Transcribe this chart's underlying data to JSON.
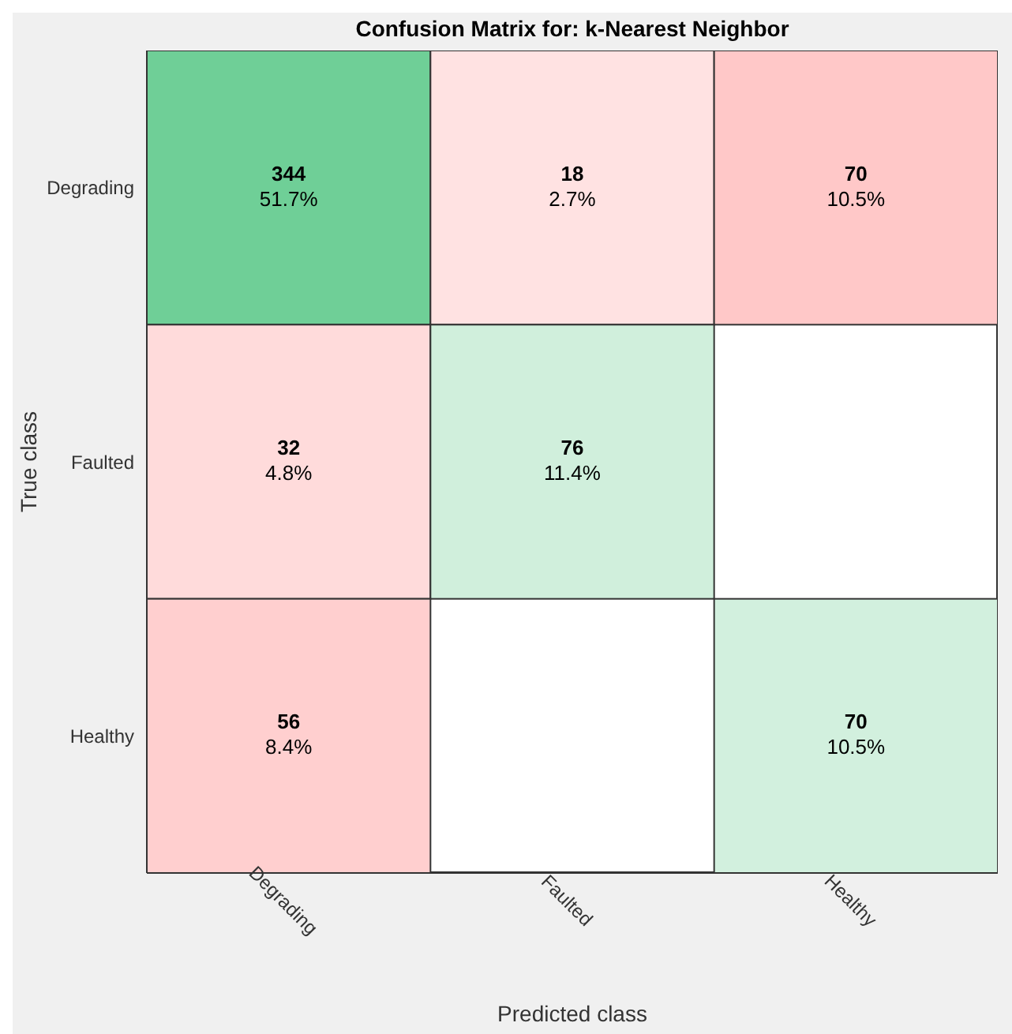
{
  "chart_data": {
    "type": "heatmap",
    "title": "Confusion Matrix for: k-Nearest Neighbor",
    "xlabel": "Predicted class",
    "ylabel": "True class",
    "categories": [
      "Degrading",
      "Faulted",
      "Healthy"
    ],
    "y_categories": [
      "Degrading",
      "Faulted",
      "Healthy"
    ],
    "cells": [
      [
        344,
        18,
        70
      ],
      [
        32,
        76,
        null
      ],
      [
        56,
        null,
        70
      ]
    ],
    "data_labels": true,
    "annotations": [
      "51.7%",
      "2.7%",
      "10.5%",
      "4.8%",
      "11.4%",
      "8.4%",
      "10.5%"
    ]
  }
}
